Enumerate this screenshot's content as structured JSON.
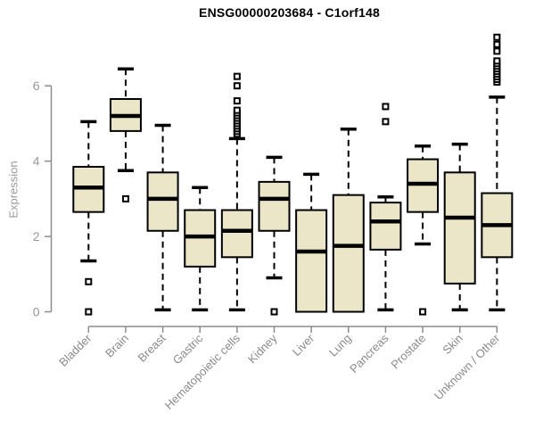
{
  "window": {
    "background": "#ffffff"
  },
  "chart_data": {
    "type": "boxplot",
    "title": "ENSG00000203684 - C1orf148",
    "ylabel": "Expression",
    "xlabel": "",
    "yticks": [
      0,
      2,
      4,
      6
    ],
    "ylim": [
      -0.39,
      7.45
    ],
    "grid": false,
    "legend": null,
    "categories": [
      "Bladder",
      "Brain",
      "Breast",
      "Gastric",
      "Hematopoietic cells",
      "Kidney",
      "Liver",
      "Lung",
      "Pancreas",
      "Prostate",
      "Skin",
      "Unknown / Other"
    ],
    "boxes": [
      {
        "category": "Bladder",
        "whisker_low": 1.35,
        "q1": 2.65,
        "median": 3.3,
        "q3": 3.85,
        "whisker_high": 5.05,
        "outliers": [
          0.8,
          0.0
        ]
      },
      {
        "category": "Brain",
        "whisker_low": 3.75,
        "q1": 4.8,
        "median": 5.2,
        "q3": 5.65,
        "whisker_high": 6.45,
        "outliers": [
          3.0
        ]
      },
      {
        "category": "Breast",
        "whisker_low": 0.05,
        "q1": 2.15,
        "median": 3.0,
        "q3": 3.7,
        "whisker_high": 4.95,
        "outliers": []
      },
      {
        "category": "Gastric",
        "whisker_low": 0.05,
        "q1": 1.2,
        "median": 2.0,
        "q3": 2.7,
        "whisker_high": 3.3,
        "outliers": []
      },
      {
        "category": "Hematopoietic cells",
        "whisker_low": 0.05,
        "q1": 1.45,
        "median": 2.15,
        "q3": 2.7,
        "whisker_high": 4.6,
        "outliers": [
          4.72,
          4.79,
          4.86,
          4.93,
          5.0,
          5.07,
          5.14,
          5.21,
          5.28,
          5.35,
          5.6,
          6.0,
          6.25
        ]
      },
      {
        "category": "Kidney",
        "whisker_low": 0.9,
        "q1": 2.15,
        "median": 3.0,
        "q3": 3.45,
        "whisker_high": 4.1,
        "outliers": [
          0.0
        ]
      },
      {
        "category": "Liver",
        "whisker_low": 0.0,
        "q1": 0.0,
        "median": 1.6,
        "q3": 2.7,
        "whisker_high": 3.65,
        "outliers": []
      },
      {
        "category": "Lung",
        "whisker_low": 0.0,
        "q1": 0.0,
        "median": 1.75,
        "q3": 3.1,
        "whisker_high": 4.85,
        "outliers": []
      },
      {
        "category": "Pancreas",
        "whisker_low": 0.05,
        "q1": 1.65,
        "median": 2.4,
        "q3": 2.9,
        "whisker_high": 3.05,
        "outliers": [
          5.05,
          5.45
        ]
      },
      {
        "category": "Prostate",
        "whisker_low": 1.8,
        "q1": 2.65,
        "median": 3.4,
        "q3": 4.05,
        "whisker_high": 4.4,
        "outliers": [
          0.0
        ]
      },
      {
        "category": "Skin",
        "whisker_low": 0.05,
        "q1": 0.75,
        "median": 2.5,
        "q3": 3.7,
        "whisker_high": 4.45,
        "outliers": []
      },
      {
        "category": "Unknown / Other",
        "whisker_low": 0.05,
        "q1": 1.45,
        "median": 2.3,
        "q3": 3.15,
        "whisker_high": 5.7,
        "outliers": [
          6.1,
          6.17,
          6.24,
          6.31,
          6.38,
          6.45,
          6.52,
          6.59,
          6.66,
          6.92,
          7.1,
          7.29
        ]
      }
    ],
    "style": {
      "box_fill": "#ece6c9",
      "box_stroke": "#000000",
      "median_color": "#000000",
      "whisker_color": "#000000",
      "outlier_stroke": "#000000",
      "outlier_fill": "#ffffff",
      "axis_color": "#8c8c8c",
      "tick_label_color": "#979797",
      "category_label_color": "#8a8a8a",
      "title_color": "#000000",
      "ylabel_color": "#9a9a9a"
    }
  }
}
